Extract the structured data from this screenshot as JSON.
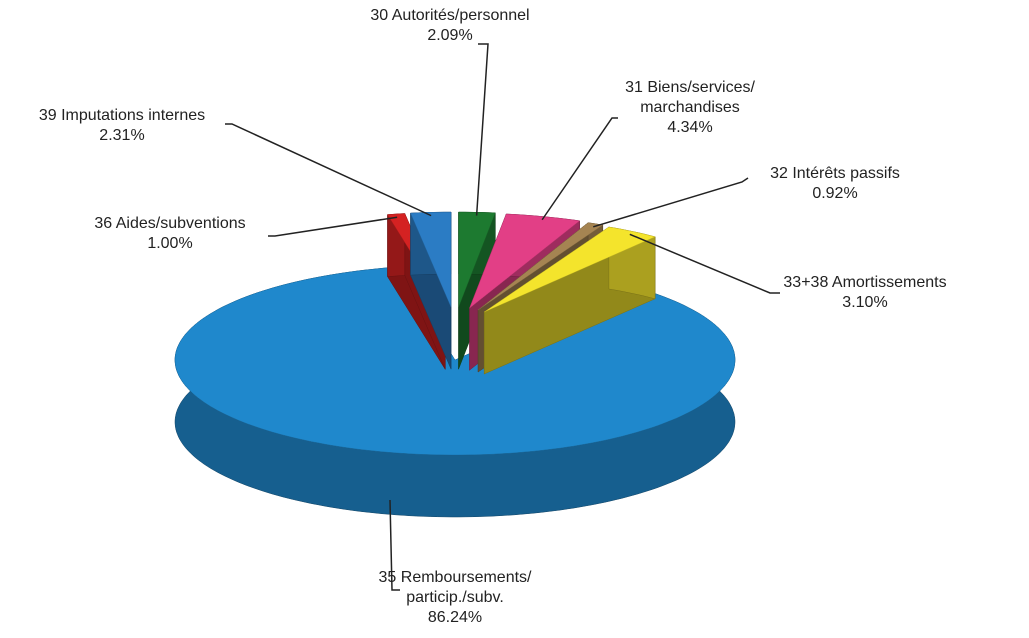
{
  "chart_data": {
    "type": "pie",
    "categories": [
      "30  Autorités/personnel",
      "31  Biens/services/\nmarchandises",
      "32  Intérêts passifs",
      "33+38  Amortissements",
      "35  Remboursements/\nparticip./subv.",
      "36  Aides/subventions",
      "39  Imputations internes"
    ],
    "values": [
      2.09,
      4.34,
      0.92,
      3.1,
      86.24,
      1.0,
      2.31
    ],
    "value_labels": [
      "2.09%",
      "4.34%",
      "0.92%",
      "3.10%",
      "86.24%",
      "1.00%",
      "2.31%"
    ],
    "colors": [
      "#1d7a30",
      "#e23f86",
      "#a58452",
      "#f4e42c",
      "#1f88cc",
      "#d42222",
      "#2b7cc4"
    ]
  }
}
